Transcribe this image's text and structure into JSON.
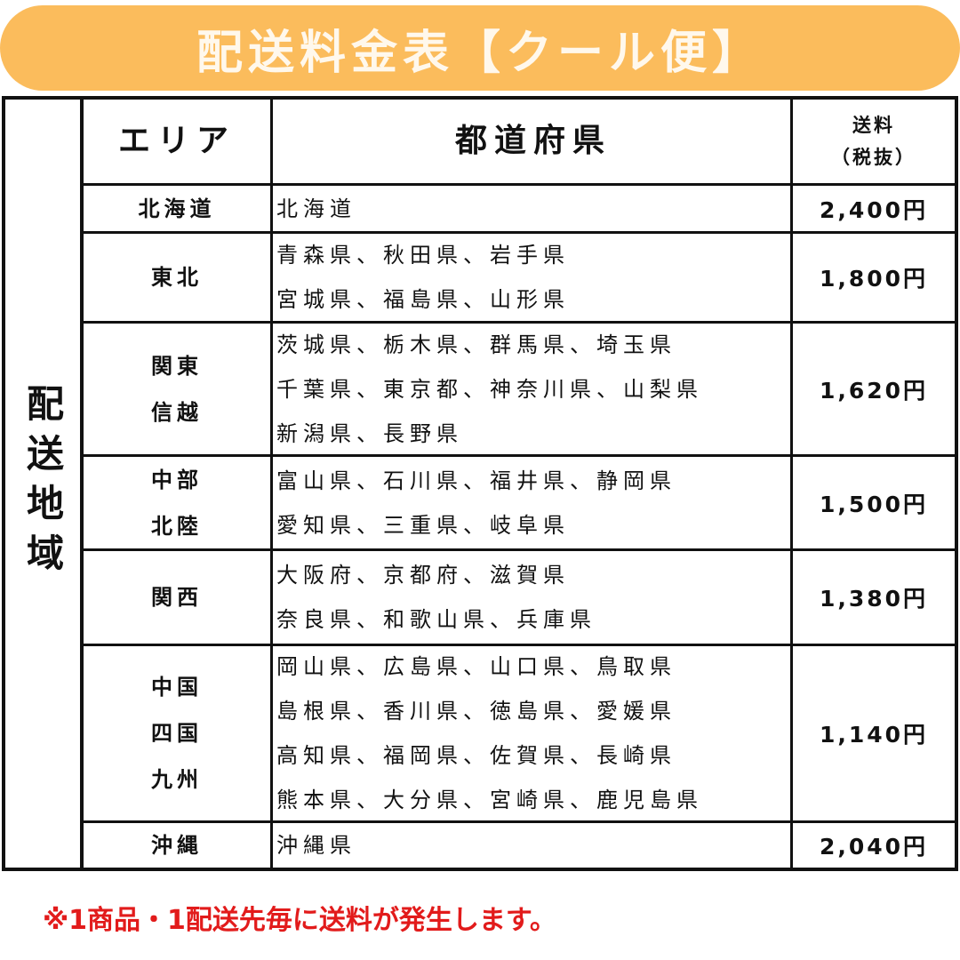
{
  "title": "配送料金表【クール便】",
  "region_label": "配送地域",
  "headers": {
    "area": "エリア",
    "prefectures": "都道府県",
    "fee_line1": "送料",
    "fee_line2": "（税抜）"
  },
  "rows": [
    {
      "area": "北海道",
      "prefectures": [
        "北海道"
      ],
      "fee": "2,400円"
    },
    {
      "area": "東北",
      "prefectures": [
        "青森県、秋田県、岩手県",
        "宮城県、福島県、山形県"
      ],
      "fee": "1,800円"
    },
    {
      "area": "関東\n信越",
      "prefectures": [
        "茨城県、栃木県、群馬県、埼玉県",
        "千葉県、東京都、神奈川県、山梨県",
        "新潟県、長野県"
      ],
      "fee": "1,620円"
    },
    {
      "area": "中部\n北陸",
      "prefectures": [
        "富山県、石川県、福井県、静岡県",
        "愛知県、三重県、岐阜県"
      ],
      "fee": "1,500円"
    },
    {
      "area": "関西",
      "prefectures": [
        "大阪府、京都府、滋賀県",
        "奈良県、和歌山県、兵庫県"
      ],
      "fee": "1,380円"
    },
    {
      "area": "中国\n四国\n九州",
      "prefectures": [
        "岡山県、広島県、山口県、鳥取県",
        "島根県、香川県、徳島県、愛媛県",
        "高知県、福岡県、佐賀県、長崎県",
        "熊本県、大分県、宮崎県、鹿児島県"
      ],
      "fee": "1,140円"
    },
    {
      "area": "沖縄",
      "prefectures": [
        "沖縄県"
      ],
      "fee": "2,040円"
    }
  ],
  "note": "※1商品・1配送先毎に送料が発生します。",
  "colors": {
    "banner": "#fbbc5c",
    "note": "#e21b1b"
  }
}
